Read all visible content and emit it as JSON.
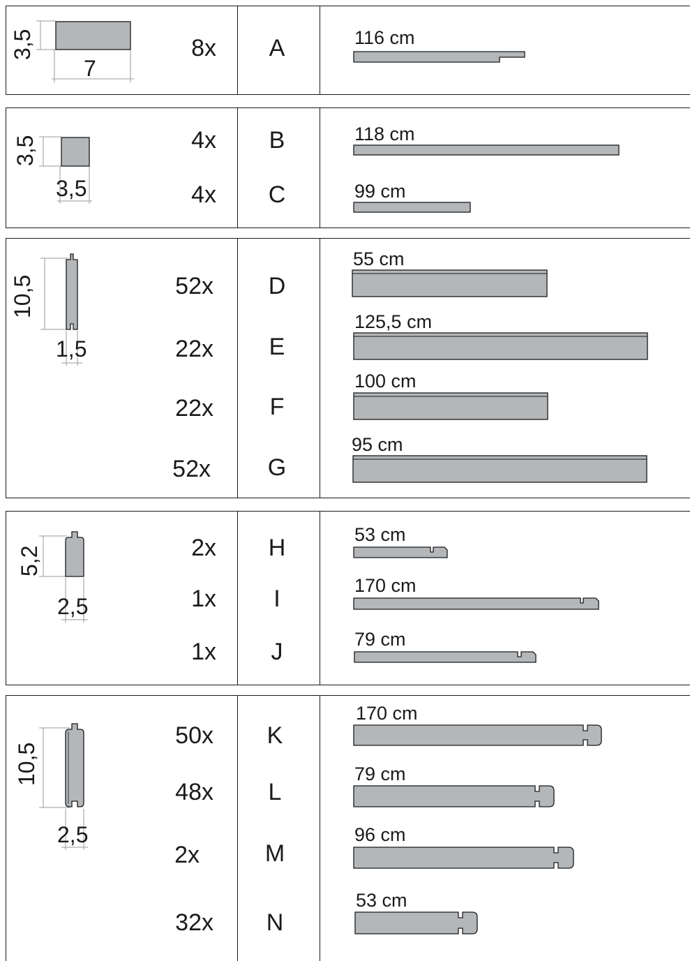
{
  "colors": {
    "line": "#1a1a1a",
    "board_fill": "#b4b7ba",
    "dim_line": "#9a9a9a"
  },
  "groups": [
    {
      "profile": {
        "height": "3,5",
        "width": "7"
      },
      "parts": [
        {
          "qty": "8x",
          "code": "A",
          "length": "116 cm"
        }
      ]
    },
    {
      "profile": {
        "height": "3,5",
        "width": "3,5"
      },
      "parts": [
        {
          "qty": "4x",
          "code": "B",
          "length": "118 cm"
        },
        {
          "qty": "4x",
          "code": "C",
          "length": "99 cm"
        }
      ]
    },
    {
      "profile": {
        "height": "10,5",
        "width": "1,5"
      },
      "parts": [
        {
          "qty": "52x",
          "code": "D",
          "length": "55 cm"
        },
        {
          "qty": "22x",
          "code": "E",
          "length": "125,5 cm"
        },
        {
          "qty": "22x",
          "code": "F",
          "length": "100 cm"
        },
        {
          "qty": "52x",
          "code": "G",
          "length": "95 cm"
        }
      ]
    },
    {
      "profile": {
        "height": "5,2",
        "width": "2,5"
      },
      "parts": [
        {
          "qty": "2x",
          "code": "H",
          "length": "53 cm"
        },
        {
          "qty": "1x",
          "code": "I",
          "length": "170 cm"
        },
        {
          "qty": "1x",
          "code": "J",
          "length": "79 cm"
        }
      ]
    },
    {
      "profile": {
        "height": "10,5",
        "width": "2,5"
      },
      "parts": [
        {
          "qty": "50x",
          "code": "K",
          "length": "170 cm"
        },
        {
          "qty": "48x",
          "code": "L",
          "length": "79 cm"
        },
        {
          "qty": "2x",
          "code": "M",
          "length": "96 cm"
        },
        {
          "qty": "32x",
          "code": "N",
          "length": "53 cm"
        }
      ]
    }
  ]
}
